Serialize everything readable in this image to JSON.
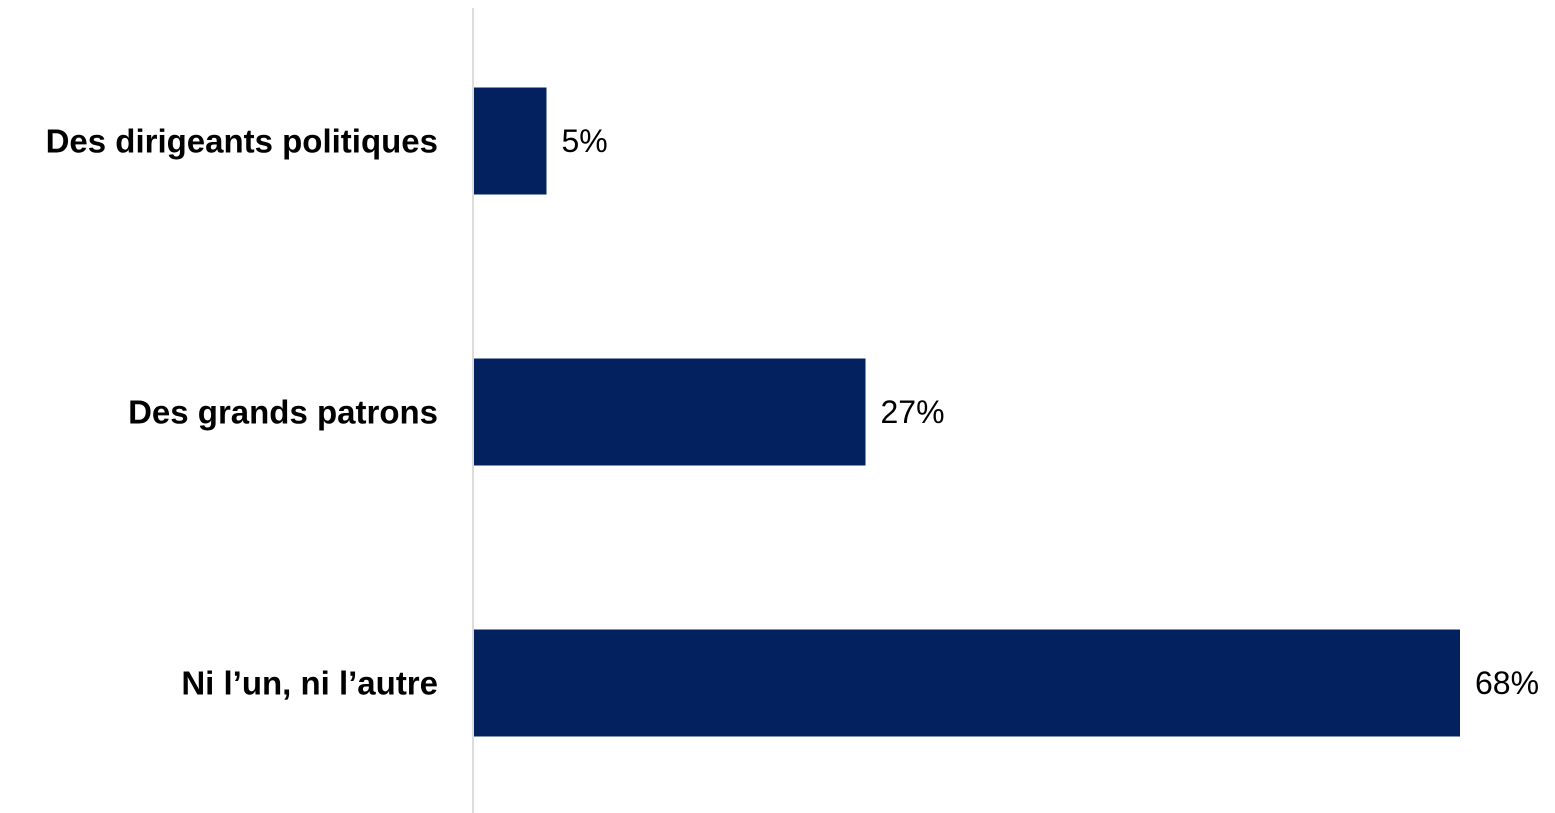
{
  "chart_data": {
    "type": "bar",
    "orientation": "horizontal",
    "categories": [
      "Des dirigeants politiques",
      "Des grands patrons",
      "Ni l’un, ni l’autre"
    ],
    "values": [
      5,
      27,
      68
    ],
    "value_labels": [
      "5%",
      "27%",
      "68%"
    ],
    "unit": "%",
    "xlim": [
      0,
      68
    ],
    "grid": false,
    "legend": "none",
    "colors": {
      "bar": "#03215F",
      "axis": "#D0D0D0",
      "text": "#000000"
    }
  }
}
